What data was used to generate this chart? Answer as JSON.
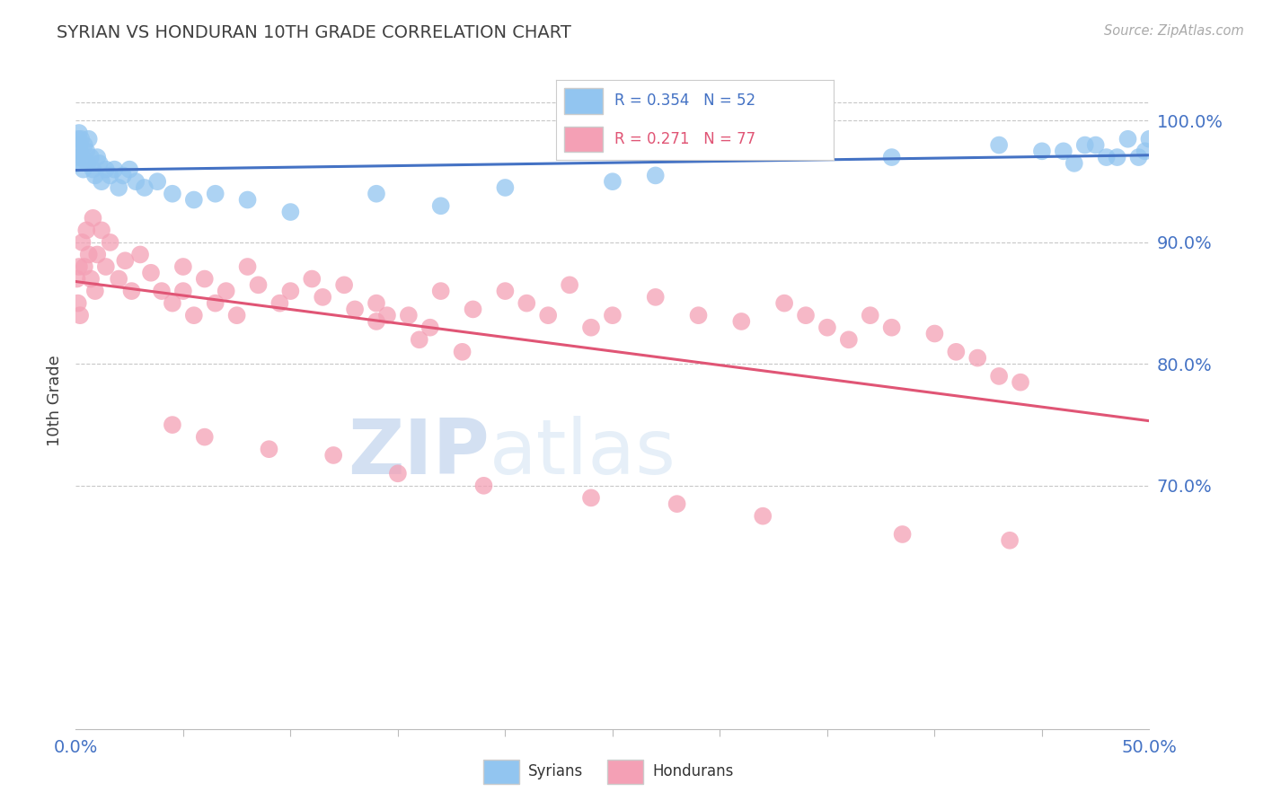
{
  "title": "SYRIAN VS HONDURAN 10TH GRADE CORRELATION CHART",
  "source": "Source: ZipAtlas.com",
  "ylabel": "10th Grade",
  "xlim": [
    0.0,
    50.0
  ],
  "ylim": [
    50.0,
    104.0
  ],
  "syrian_R": 0.354,
  "syrian_N": 52,
  "honduran_R": 0.271,
  "honduran_N": 77,
  "syrian_color": "#92C5F0",
  "honduran_color": "#F4A0B5",
  "syrian_line_color": "#4472C4",
  "honduran_line_color": "#E05575",
  "legend_label_syrian": "Syrians",
  "legend_label_honduran": "Hondurans",
  "title_color": "#404040",
  "axis_label_color": "#4472C4",
  "ytick_positions": [
    70,
    80,
    90,
    100
  ],
  "ytick_labels": [
    "70.0%",
    "80.0%",
    "90.0%",
    "100.0%"
  ],
  "syrian_x": [
    0.05,
    0.1,
    0.12,
    0.15,
    0.18,
    0.2,
    0.25,
    0.3,
    0.35,
    0.4,
    0.5,
    0.55,
    0.6,
    0.7,
    0.8,
    0.9,
    1.0,
    1.1,
    1.2,
    1.4,
    1.6,
    1.8,
    2.0,
    2.2,
    2.5,
    2.8,
    3.2,
    3.8,
    4.5,
    5.5,
    6.5,
    8.0,
    10.0,
    14.0,
    17.0,
    20.0,
    25.0,
    27.0,
    34.0,
    38.0,
    43.0,
    46.0,
    47.5,
    48.5,
    49.0,
    49.5,
    50.0,
    49.8,
    48.0,
    47.0,
    46.5,
    45.0
  ],
  "syrian_y": [
    96.5,
    98.5,
    97.0,
    99.0,
    98.0,
    97.5,
    98.5,
    97.0,
    96.0,
    98.0,
    97.5,
    96.5,
    98.5,
    97.0,
    96.0,
    95.5,
    97.0,
    96.5,
    95.0,
    96.0,
    95.5,
    96.0,
    94.5,
    95.5,
    96.0,
    95.0,
    94.5,
    95.0,
    94.0,
    93.5,
    94.0,
    93.5,
    92.5,
    94.0,
    93.0,
    94.5,
    95.0,
    95.5,
    97.5,
    97.0,
    98.0,
    97.5,
    98.0,
    97.0,
    98.5,
    97.0,
    98.5,
    97.5,
    97.0,
    98.0,
    96.5,
    97.5
  ],
  "honduran_x": [
    0.05,
    0.1,
    0.15,
    0.2,
    0.3,
    0.4,
    0.5,
    0.6,
    0.7,
    0.8,
    0.9,
    1.0,
    1.2,
    1.4,
    1.6,
    2.0,
    2.3,
    2.6,
    3.0,
    3.5,
    4.0,
    4.5,
    5.0,
    5.5,
    6.0,
    7.0,
    8.0,
    9.5,
    11.0,
    12.5,
    14.0,
    15.5,
    17.0,
    18.5,
    20.0,
    21.0,
    22.0,
    23.0,
    24.0,
    25.0,
    27.0,
    29.0,
    31.0,
    33.0,
    34.0,
    35.0,
    36.0,
    37.0,
    38.0,
    40.0,
    41.0,
    42.0,
    43.0,
    44.0,
    14.0,
    16.0,
    18.0,
    5.0,
    6.5,
    7.5,
    8.5,
    10.0,
    11.5,
    13.0,
    14.5,
    16.5,
    4.5,
    6.0,
    9.0,
    12.0,
    15.0,
    19.0,
    24.0,
    28.0,
    32.0,
    38.5,
    43.5
  ],
  "honduran_y": [
    87.0,
    85.0,
    88.0,
    84.0,
    90.0,
    88.0,
    91.0,
    89.0,
    87.0,
    92.0,
    86.0,
    89.0,
    91.0,
    88.0,
    90.0,
    87.0,
    88.5,
    86.0,
    89.0,
    87.5,
    86.0,
    85.0,
    88.0,
    84.0,
    87.0,
    86.0,
    88.0,
    85.0,
    87.0,
    86.5,
    85.0,
    84.0,
    86.0,
    84.5,
    86.0,
    85.0,
    84.0,
    86.5,
    83.0,
    84.0,
    85.5,
    84.0,
    83.5,
    85.0,
    84.0,
    83.0,
    82.0,
    84.0,
    83.0,
    82.5,
    81.0,
    80.5,
    79.0,
    78.5,
    83.5,
    82.0,
    81.0,
    86.0,
    85.0,
    84.0,
    86.5,
    86.0,
    85.5,
    84.5,
    84.0,
    83.0,
    75.0,
    74.0,
    73.0,
    72.5,
    71.0,
    70.0,
    69.0,
    68.5,
    67.5,
    66.0,
    65.5
  ]
}
